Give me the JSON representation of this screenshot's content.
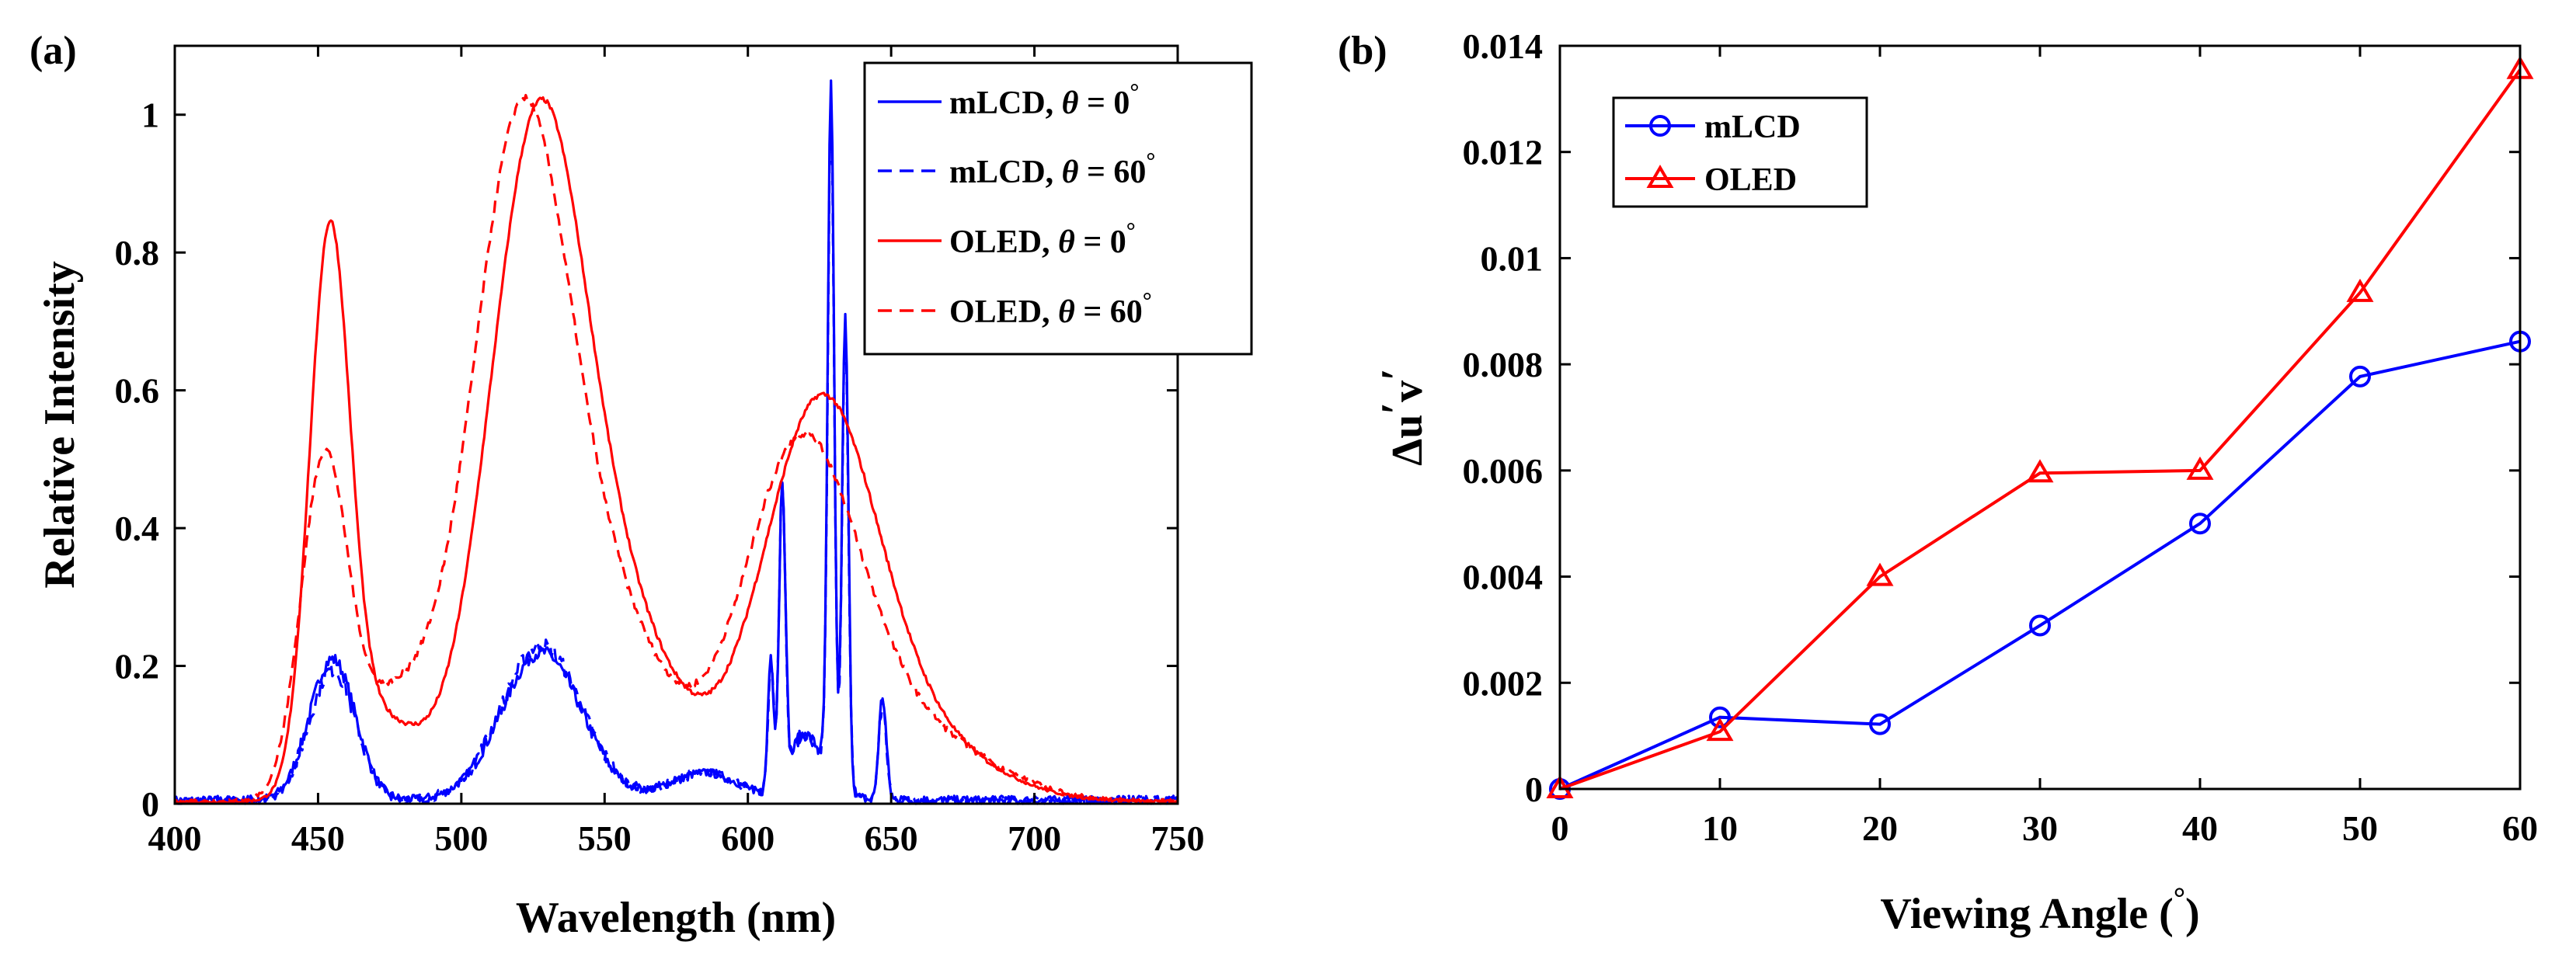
{
  "figure": {
    "background": "#ffffff",
    "colors": {
      "mlcd": "#0000ff",
      "oled": "#ff0000",
      "axis": "#000000"
    }
  },
  "chart_data": [
    {
      "id": "a",
      "panel_label": "(a)",
      "type": "line",
      "title": "",
      "xlabel": "Wavelength (nm)",
      "ylabel": "Relative Intensity",
      "xlim": [
        400,
        750
      ],
      "ylim": [
        0,
        1.1
      ],
      "xticks": [
        400,
        450,
        500,
        550,
        600,
        650,
        700,
        750
      ],
      "yticks": [
        0,
        0.2,
        0.4,
        0.6,
        0.8,
        1
      ],
      "ytick_labels": [
        "0",
        "0.2",
        "0.4",
        "0.6",
        "0.8",
        "1"
      ],
      "legend_position": "top-right",
      "series": [
        {
          "name": "mLCD, θ = 0°",
          "legend_prefix": "mLCD, ",
          "legend_theta": "θ",
          "legend_value": " = 0",
          "legend_unit": "°",
          "color": "#0000ff",
          "style": "solid",
          "peaks": [
            [
              455,
              0.205,
              8
            ],
            [
              528,
              0.215,
              14
            ],
            [
              585,
              0.04,
              12
            ],
            [
              608,
              0.2,
              1
            ],
            [
              612,
              0.44,
              1.1
            ],
            [
              618,
              0.06,
              4
            ],
            [
              629,
              0.99,
              1.1
            ],
            [
              634,
              0.68,
              1.1
            ],
            [
              625,
              0.06,
              6
            ],
            [
              647,
              0.15,
              1.3
            ]
          ],
          "floor": 0.005,
          "noise": 0.012
        },
        {
          "name": "mLCD, θ = 60°",
          "legend_prefix": "mLCD, ",
          "legend_theta": "θ",
          "legend_value": " = 60",
          "legend_unit": "°",
          "color": "#0000ff",
          "style": "dashed",
          "peaks": [
            [
              455,
              0.19,
              8
            ],
            [
              528,
              0.225,
              14
            ],
            [
              585,
              0.04,
              12
            ],
            [
              608,
              0.19,
              1
            ],
            [
              612,
              0.43,
              1.1
            ],
            [
              618,
              0.06,
              4
            ],
            [
              629,
              0.96,
              1.1
            ],
            [
              634,
              0.66,
              1.1
            ],
            [
              625,
              0.06,
              6
            ],
            [
              647,
              0.14,
              1.3
            ]
          ],
          "floor": 0.005,
          "noise": 0.014
        },
        {
          "name": "OLED, θ = 0°",
          "legend_prefix": "OLED, ",
          "legend_theta": "θ",
          "legend_value": " = 0",
          "legend_unit": "°",
          "color": "#ff0000",
          "style": "solid",
          "peaks": [
            [
              454,
              0.78,
              7
            ],
            [
              527,
              0.98,
              17
            ],
            [
              470,
              0.12,
              14
            ],
            [
              560,
              0.2,
              18
            ],
            [
              625,
              0.56,
              20
            ],
            [
              660,
              0.08,
              25
            ]
          ],
          "floor": 0.003,
          "noise": 0.004
        },
        {
          "name": "OLED, θ = 60°",
          "legend_prefix": "OLED, ",
          "legend_theta": "θ",
          "legend_value": " = 60",
          "legend_unit": "°",
          "color": "#ff0000",
          "style": "dashed",
          "peaks": [
            [
              452,
              0.46,
              8
            ],
            [
              521,
              0.98,
              17
            ],
            [
              475,
              0.14,
              16
            ],
            [
              555,
              0.22,
              18
            ],
            [
              618,
              0.49,
              20
            ],
            [
              655,
              0.1,
              28
            ]
          ],
          "floor": 0.003,
          "noise": 0.006
        }
      ]
    },
    {
      "id": "b",
      "panel_label": "(b)",
      "type": "line",
      "title": "",
      "xlabel_main": "Viewing Angle (",
      "xlabel_unit": "°",
      "xlabel_close": ")",
      "ylabel_main": "Δu",
      "ylabel_prime1": "′",
      "ylabel_v": "v",
      "ylabel_prime2": "′",
      "x": [
        0,
        10,
        20,
        30,
        40,
        50,
        60
      ],
      "xlim": [
        0,
        60
      ],
      "ylim": [
        0,
        0.014
      ],
      "xticks": [
        0,
        10,
        20,
        30,
        40,
        50,
        60
      ],
      "yticks": [
        0,
        0.002,
        0.004,
        0.006,
        0.008,
        0.01,
        0.012,
        0.014
      ],
      "ytick_labels": [
        "0",
        "0.002",
        "0.004",
        "0.006",
        "0.008",
        "0.01",
        "0.012",
        "0.014"
      ],
      "legend_position": "top-left",
      "series": [
        {
          "name": "mLCD",
          "color": "#0000ff",
          "marker": "circle",
          "values": [
            0,
            0.00135,
            0.00122,
            0.00308,
            0.005,
            0.00777,
            0.00843
          ]
        },
        {
          "name": "OLED",
          "color": "#ff0000",
          "marker": "triangle",
          "values": [
            0,
            0.00108,
            0.004,
            0.00595,
            0.006,
            0.00935,
            0.01355
          ]
        }
      ]
    }
  ]
}
